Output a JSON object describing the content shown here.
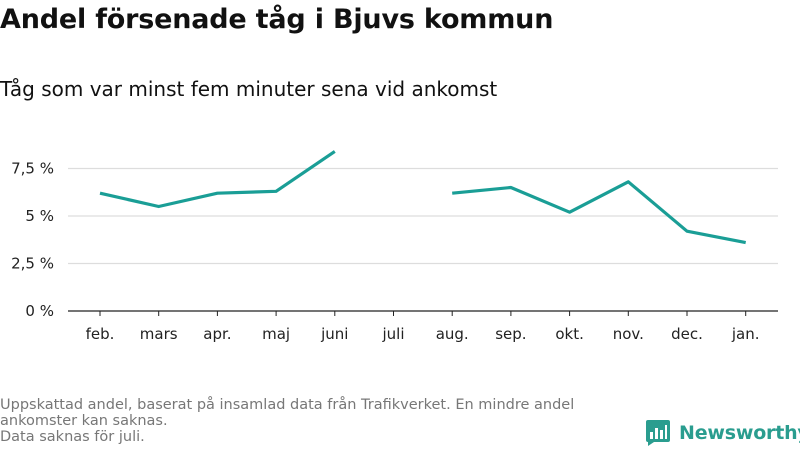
{
  "header": {
    "title": "Andel försenade tåg i Bjuvs kommun",
    "subtitle": "Tåg som var minst fem minuter sena vid ankomst"
  },
  "footnote": {
    "line1": "Uppskattad andel, baserat på insamlad data från Trafikverket. En mindre andel ankomster kan saknas.",
    "line2": "Data saknas för juli."
  },
  "brand": {
    "name": "Newsworthy",
    "icon": "newsworthy-logo-icon",
    "color": "#2a9d8f"
  },
  "chart_data": {
    "type": "line",
    "title": "Andel försenade tåg i Bjuvs kommun",
    "subtitle": "Tåg som var minst fem minuter sena vid ankomst",
    "categories": [
      "feb.",
      "mars",
      "apr.",
      "maj",
      "juni",
      "juli",
      "aug.",
      "sep.",
      "okt.",
      "nov.",
      "dec.",
      "jan."
    ],
    "series": [
      {
        "values": [
          6.2,
          5.5,
          6.2,
          6.3,
          8.4,
          null,
          6.2,
          6.5,
          5.2,
          6.8,
          4.2,
          3.6
        ],
        "color": "#1a9e96"
      }
    ],
    "yticks": [
      0,
      2.5,
      5,
      7.5
    ],
    "ytick_labels": [
      "0 %",
      "2,5 %",
      "5 %",
      "7,5 %"
    ],
    "ylim": [
      0,
      9
    ],
    "grid": true,
    "legend": "none",
    "xlabel": "",
    "ylabel": ""
  }
}
